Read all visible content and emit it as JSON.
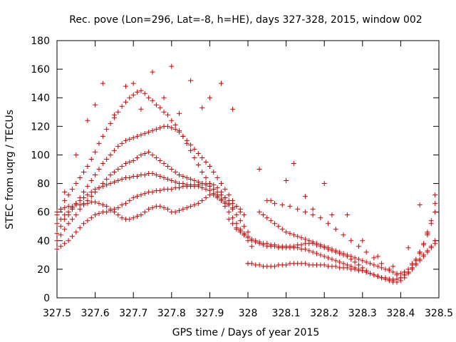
{
  "chart_data": {
    "type": "scatter",
    "title": "Rec. pove (Lon=296, Lat=-8, h=HE), days 327-328, 2015, window 002",
    "xlabel": "GPS time / Days of year 2015",
    "ylabel": "STEC from uqrg / TECUs",
    "xlim": [
      327.5,
      328.5
    ],
    "ylim": [
      0,
      180
    ],
    "x_ticks": [
      "327.5",
      "327.6",
      "327.7",
      "327.8",
      "327.9",
      "328",
      "328.1",
      "328.2",
      "328.3",
      "328.4",
      "328.5"
    ],
    "y_ticks": [
      "0",
      "20",
      "40",
      "60",
      "80",
      "100",
      "120",
      "140",
      "160",
      "180"
    ],
    "grid": false,
    "legend": "none",
    "marker": "plus",
    "color": "#d00000",
    "series": [
      {
        "x": [
          327.5,
          327.51,
          327.52,
          327.53,
          327.54,
          327.55,
          327.56,
          327.57,
          327.58,
          327.59,
          327.6,
          327.61,
          327.62,
          327.63,
          327.64,
          327.65,
          327.66,
          327.67,
          327.68,
          327.69,
          327.7,
          327.71,
          327.72,
          327.73,
          327.74,
          327.75,
          327.76,
          327.77,
          327.78,
          327.79,
          327.8,
          327.81,
          327.82,
          327.83,
          327.84,
          327.85,
          327.86,
          327.87,
          327.88,
          327.89,
          327.9,
          327.91,
          327.92,
          327.93,
          327.94
        ],
        "y": [
          58,
          62,
          68,
          72,
          76,
          80,
          84,
          88,
          92,
          97,
          102,
          108,
          113,
          118,
          122,
          126,
          130,
          134,
          137,
          140,
          142,
          144,
          145,
          143,
          140,
          138,
          135,
          133,
          130,
          128,
          124,
          121,
          117,
          113,
          108,
          103,
          98,
          93,
          88,
          84,
          80,
          76,
          72,
          69,
          66
        ]
      },
      {
        "x": [
          327.5,
          327.51,
          327.52,
          327.53,
          327.54,
          327.55,
          327.56,
          327.57,
          327.58,
          327.59,
          327.6,
          327.61,
          327.62,
          327.63,
          327.64,
          327.65,
          327.66,
          327.67,
          327.68,
          327.69,
          327.7,
          327.71,
          327.72,
          327.73,
          327.74,
          327.75,
          327.76,
          327.77,
          327.78,
          327.79,
          327.8,
          327.81,
          327.82,
          327.83,
          327.84,
          327.85,
          327.86,
          327.87,
          327.88,
          327.89,
          327.9,
          327.91,
          327.92,
          327.93,
          327.94,
          327.95,
          327.96,
          327.97,
          327.98
        ],
        "y": [
          45,
          50,
          55,
          58,
          62,
          66,
          70,
          74,
          78,
          82,
          86,
          90,
          94,
          97,
          100,
          103,
          106,
          108,
          110,
          111,
          112,
          113,
          114,
          115,
          116,
          117,
          118,
          119,
          120,
          120,
          119,
          118,
          116,
          113,
          110,
          107,
          104,
          101,
          98,
          95,
          92,
          88,
          84,
          80,
          76,
          72,
          68,
          64,
          60
        ]
      },
      {
        "x": [
          327.5,
          327.51,
          327.52,
          327.53,
          327.54,
          327.55,
          327.56,
          327.57,
          327.58,
          327.59,
          327.6,
          327.61,
          327.62,
          327.63,
          327.64,
          327.65,
          327.66,
          327.67,
          327.68,
          327.69,
          327.7,
          327.71,
          327.72,
          327.73,
          327.74,
          327.75,
          327.76,
          327.77,
          327.78,
          327.79,
          327.8,
          327.81,
          327.82,
          327.83,
          327.84,
          327.85,
          327.86,
          327.87,
          327.88,
          327.89,
          327.9,
          327.91,
          327.92,
          327.93,
          327.94,
          327.95,
          327.96,
          327.97,
          327.98,
          327.99
        ],
        "y": [
          40,
          44,
          48,
          52,
          55,
          58,
          62,
          65,
          68,
          71,
          74,
          77,
          80,
          83,
          86,
          88,
          90,
          92,
          94,
          95,
          96,
          98,
          100,
          101,
          102,
          100,
          98,
          96,
          94,
          92,
          90,
          88,
          86,
          85,
          84,
          83,
          82,
          81,
          80,
          79,
          78,
          76,
          74,
          72,
          70,
          68,
          66,
          64,
          62,
          58
        ]
      },
      {
        "x": [
          327.5,
          327.51,
          327.52,
          327.53,
          327.54,
          327.55,
          327.56,
          327.57,
          327.58,
          327.59,
          327.6,
          327.61,
          327.62,
          327.63,
          327.64,
          327.65,
          327.66,
          327.67,
          327.68,
          327.69,
          327.7,
          327.71,
          327.72,
          327.73,
          327.74,
          327.75,
          327.76,
          327.77,
          327.78,
          327.79,
          327.8,
          327.81,
          327.82,
          327.83,
          327.84,
          327.85,
          327.86,
          327.87,
          327.88,
          327.89,
          327.9,
          327.91,
          327.92,
          327.93,
          327.94,
          327.95,
          327.96
        ],
        "y": [
          52,
          55,
          58,
          60,
          63,
          66,
          68,
          70,
          72,
          74,
          76,
          77,
          78,
          79,
          80,
          81,
          82,
          83,
          84,
          84,
          85,
          85,
          86,
          86,
          87,
          87,
          86,
          85,
          84,
          83,
          82,
          81,
          80,
          80,
          79,
          79,
          78,
          78,
          77,
          76,
          75,
          73,
          71,
          69,
          67,
          65,
          63
        ]
      },
      {
        "x": [
          327.5,
          327.51,
          327.52,
          327.53,
          327.54,
          327.55,
          327.56,
          327.57,
          327.58,
          327.59,
          327.6,
          327.61,
          327.62,
          327.63,
          327.64,
          327.65,
          327.66,
          327.67,
          327.68,
          327.69,
          327.7,
          327.71,
          327.72,
          327.73,
          327.74,
          327.75,
          327.76,
          327.77,
          327.78,
          327.79,
          327.8,
          327.81,
          327.82,
          327.83,
          327.84,
          327.85,
          327.86,
          327.87,
          327.88,
          327.89,
          327.9,
          327.91,
          327.92,
          327.93,
          327.94,
          327.95,
          327.96,
          327.97,
          327.98,
          327.99,
          328.0
        ],
        "y": [
          34,
          36,
          38,
          40,
          43,
          46,
          49,
          52,
          54,
          56,
          58,
          59,
          60,
          60,
          61,
          62,
          63,
          65,
          66,
          68,
          70,
          71,
          72,
          73,
          74,
          74,
          75,
          75,
          76,
          76,
          76,
          77,
          77,
          78,
          78,
          78,
          79,
          79,
          80,
          80,
          80,
          79,
          77,
          74,
          70,
          66,
          62,
          58,
          54,
          50,
          46
        ]
      },
      {
        "x": [
          327.5,
          327.51,
          327.52,
          327.53,
          327.54,
          327.55,
          327.56,
          327.57,
          327.58,
          327.59,
          327.6,
          327.61,
          327.62,
          327.63,
          327.64,
          327.65,
          327.66,
          327.67,
          327.68,
          327.69,
          327.7,
          327.71,
          327.72,
          327.73,
          327.74,
          327.75,
          327.76,
          327.77,
          327.78,
          327.79,
          327.8,
          327.81,
          327.82,
          327.83,
          327.84,
          327.85,
          327.86,
          327.87,
          327.88,
          327.89,
          327.9,
          327.91,
          327.92,
          327.93,
          327.94,
          327.95,
          327.96,
          327.97,
          327.98,
          327.99,
          328.0,
          328.01
        ],
        "y": [
          60,
          62,
          63,
          64,
          64,
          65,
          65,
          66,
          66,
          67,
          67,
          66,
          65,
          64,
          62,
          60,
          58,
          56,
          55,
          55,
          56,
          57,
          58,
          60,
          62,
          63,
          64,
          64,
          63,
          62,
          60,
          60,
          61,
          62,
          63,
          64,
          65,
          66,
          68,
          70,
          72,
          72,
          70,
          68,
          64,
          60,
          56,
          52,
          48,
          44,
          40,
          36
        ]
      },
      {
        "x": [
          327.95,
          327.96,
          327.97,
          327.98,
          327.99,
          328.0,
          328.01,
          328.02,
          328.03,
          328.04,
          328.05,
          328.06,
          328.07,
          328.08,
          328.09,
          328.1,
          328.11,
          328.12,
          328.13,
          328.14,
          328.15,
          328.16,
          328.17,
          328.18,
          328.19,
          328.2,
          328.21,
          328.22,
          328.23,
          328.24,
          328.25,
          328.26,
          328.27,
          328.28,
          328.29,
          328.3,
          328.31,
          328.32,
          328.33,
          328.34,
          328.35,
          328.36,
          328.37,
          328.38,
          328.39,
          328.4,
          328.41,
          328.42,
          328.43,
          328.44,
          328.45,
          328.46,
          328.47,
          328.48,
          328.49
        ],
        "y": [
          55,
          52,
          49,
          47,
          45,
          43,
          41,
          40,
          39,
          38,
          38,
          37,
          37,
          36,
          36,
          36,
          35,
          35,
          35,
          34,
          34,
          33,
          32,
          31,
          30,
          29,
          28,
          27,
          26,
          25,
          24,
          23,
          22,
          21,
          20,
          19,
          18,
          17,
          16,
          15,
          14,
          13,
          13,
          12,
          13,
          14,
          16,
          18,
          20,
          23,
          26,
          29,
          32,
          35,
          38
        ]
      },
      {
        "x": [
          327.97,
          327.98,
          327.99,
          328.0,
          328.01,
          328.02,
          328.03,
          328.04,
          328.05,
          328.06,
          328.07,
          328.08,
          328.09,
          328.1,
          328.11,
          328.12,
          328.13,
          328.14,
          328.15,
          328.16,
          328.17,
          328.18,
          328.19,
          328.2,
          328.21,
          328.22,
          328.23,
          328.24,
          328.25,
          328.26,
          328.27,
          328.28,
          328.29,
          328.3,
          328.31,
          328.32,
          328.33,
          328.34,
          328.35,
          328.36,
          328.37,
          328.38,
          328.39,
          328.4,
          328.41,
          328.42,
          328.43,
          328.44,
          328.45,
          328.46,
          328.47,
          328.48,
          328.49
        ],
        "y": [
          48,
          46,
          44,
          42,
          40,
          39,
          38,
          37,
          36,
          36,
          36,
          35,
          35,
          35,
          36,
          36,
          37,
          37,
          38,
          38,
          38,
          37,
          36,
          35,
          34,
          33,
          32,
          31,
          30,
          29,
          27,
          25,
          23,
          21,
          19,
          17,
          16,
          15,
          14,
          14,
          13,
          13,
          13,
          14,
          16,
          18,
          21,
          24,
          27,
          30,
          33,
          36,
          40
        ]
      },
      {
        "x": [
          328.0,
          328.01,
          328.02,
          328.03,
          328.04,
          328.05,
          328.06,
          328.07,
          328.08,
          328.09,
          328.1,
          328.11,
          328.12,
          328.13,
          328.14,
          328.15,
          328.16,
          328.17,
          328.18,
          328.19,
          328.2,
          328.21,
          328.22,
          328.23,
          328.24,
          328.25,
          328.26,
          328.27,
          328.28,
          328.29,
          328.3,
          328.31,
          328.32,
          328.33,
          328.34,
          328.35,
          328.36,
          328.37,
          328.38,
          328.39,
          328.4,
          328.41,
          328.42,
          328.43,
          328.44,
          328.45,
          328.46,
          328.47,
          328.48,
          328.49
        ],
        "y": [
          24,
          24,
          23,
          23,
          22,
          22,
          22,
          22,
          23,
          23,
          23,
          24,
          24,
          24,
          24,
          24,
          23,
          23,
          23,
          23,
          23,
          22,
          22,
          22,
          21,
          21,
          21,
          20,
          20,
          19,
          19,
          18,
          17,
          16,
          15,
          14,
          13,
          12,
          11,
          11,
          12,
          14,
          17,
          21,
          26,
          31,
          37,
          44,
          52,
          60
        ]
      },
      {
        "x": [
          328.03,
          328.04,
          328.05,
          328.06,
          328.07,
          328.08,
          328.09,
          328.1,
          328.11,
          328.12,
          328.13,
          328.14,
          328.15,
          328.16,
          328.17,
          328.18,
          328.19,
          328.2,
          328.21,
          328.22,
          328.23,
          328.24,
          328.25,
          328.26,
          328.27,
          328.28,
          328.29,
          328.3,
          328.31,
          328.32,
          328.33,
          328.34,
          328.35,
          328.36,
          328.37,
          328.38,
          328.39,
          328.4,
          328.41,
          328.42,
          328.43,
          328.44,
          328.45,
          328.46,
          328.47,
          328.48,
          328.49
        ],
        "y": [
          60,
          58,
          56,
          54,
          52,
          50,
          48,
          46,
          45,
          44,
          43,
          42,
          41,
          40,
          39,
          38,
          37,
          36,
          35,
          34,
          33,
          32,
          31,
          30,
          29,
          28,
          27,
          26,
          25,
          24,
          23,
          22,
          21,
          20,
          19,
          18,
          17,
          17,
          18,
          20,
          23,
          27,
          32,
          38,
          45,
          54,
          66
        ]
      },
      {
        "x": [
          328.05,
          328.07,
          328.09,
          328.11,
          328.13,
          328.15,
          328.17,
          328.19,
          328.21,
          328.23,
          328.25,
          328.27,
          328.29,
          328.31,
          328.33,
          328.35,
          328.37,
          328.39,
          328.41,
          328.43,
          328.45,
          328.47,
          328.49
        ],
        "y": [
          68,
          66,
          65,
          64,
          62,
          60,
          58,
          56,
          52,
          48,
          44,
          40,
          36,
          32,
          28,
          24,
          20,
          16,
          18,
          24,
          32,
          46,
          72
        ]
      },
      {
        "x": [
          327.52,
          327.55,
          327.58,
          327.6,
          327.62,
          327.65,
          327.68,
          327.7,
          327.72,
          327.75,
          327.78,
          327.8,
          327.82,
          327.85,
          327.88,
          327.9,
          327.93,
          327.96,
          328.0,
          328.03,
          328.06,
          328.1,
          328.12,
          328.15,
          328.17,
          328.2,
          328.22,
          328.26,
          328.3,
          328.34,
          328.38,
          328.42,
          328.45
        ],
        "y": [
          74,
          100,
          124,
          135,
          150,
          128,
          148,
          150,
          132,
          158,
          140,
          162,
          129,
          152,
          133,
          140,
          150,
          132,
          24,
          90,
          68,
          82,
          94,
          71,
          62,
          80,
          58,
          58,
          40,
          29,
          22,
          35,
          65
        ]
      }
    ]
  }
}
